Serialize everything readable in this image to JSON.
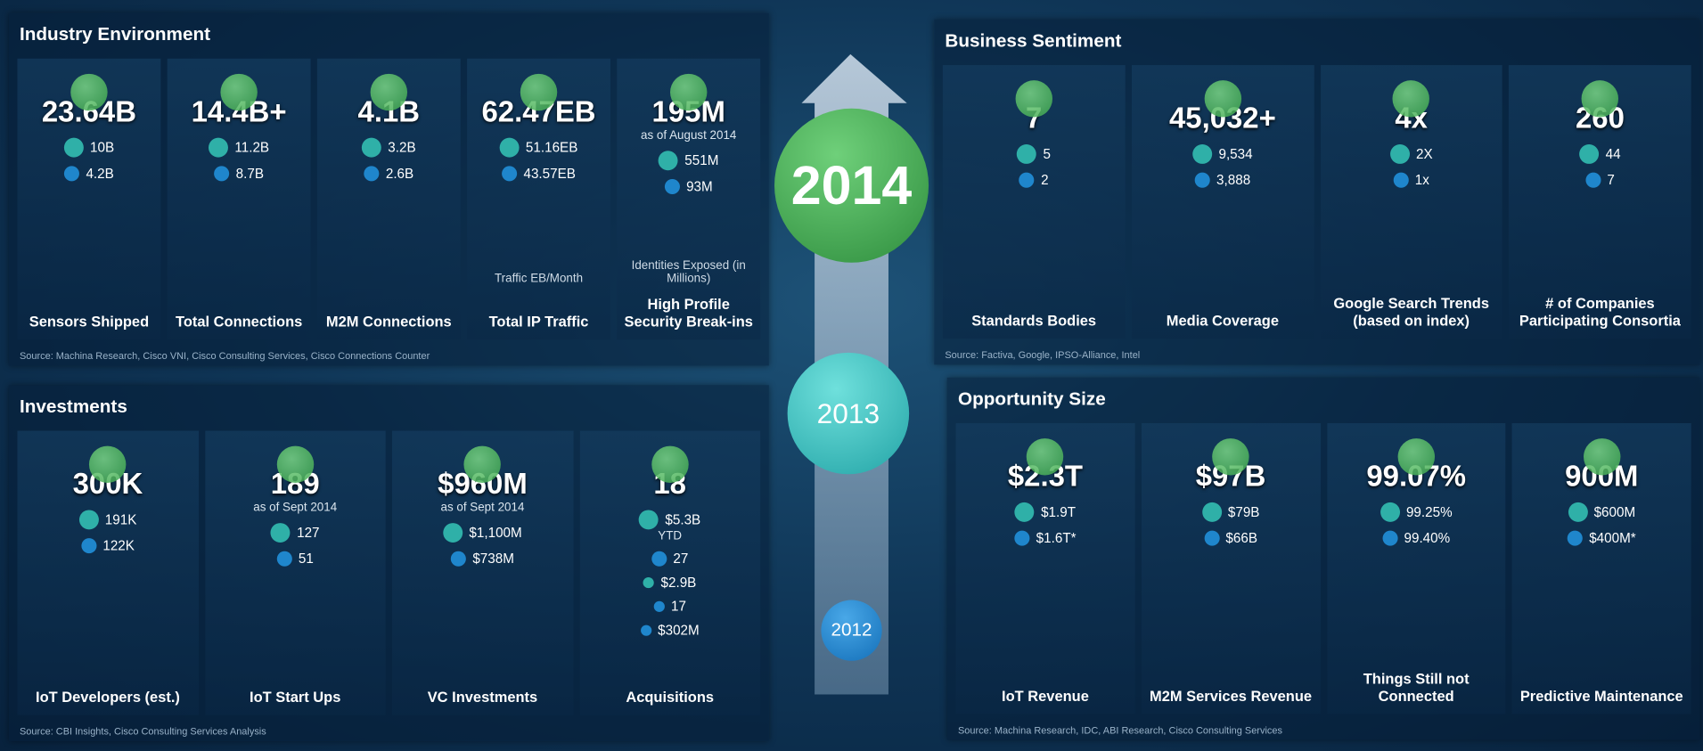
{
  "timeline": [
    "2014",
    "2013",
    "2012"
  ],
  "sections": [
    {
      "title": "Industry Environment",
      "source": "Source: Machina Research, Cisco VNI, Cisco Consulting Services, Cisco Connections Counter",
      "panels": [
        {
          "label": "Sensors Shipped",
          "items": [
            {
              "value": "23.64B"
            },
            {
              "value": "10B"
            },
            {
              "value": "4.2B"
            }
          ]
        },
        {
          "label": "Total Connections",
          "items": [
            {
              "value": "14.4B+"
            },
            {
              "value": "11.2B"
            },
            {
              "value": "8.7B"
            }
          ]
        },
        {
          "label": "M2M Connections",
          "items": [
            {
              "value": "4.1B"
            },
            {
              "value": "3.2B"
            },
            {
              "value": "2.6B"
            }
          ]
        },
        {
          "label": "Total IP Traffic",
          "caption": "Traffic EB/Month",
          "items": [
            {
              "value": "62.47EB"
            },
            {
              "value": "51.16EB"
            },
            {
              "value": "43.57EB"
            }
          ]
        },
        {
          "label": "High Profile Security Break-ins",
          "caption": "Identities Exposed (in Millions)",
          "items": [
            {
              "value": "195M",
              "note": "as of August 2014"
            },
            {
              "value": "551M"
            },
            {
              "value": "93M"
            }
          ]
        }
      ]
    },
    {
      "title": "Business Sentiment",
      "source": "Source: Factiva, Google, IPSO-Alliance, Intel",
      "panels": [
        {
          "label": "Standards Bodies",
          "items": [
            {
              "value": "7"
            },
            {
              "value": "5"
            },
            {
              "value": "2"
            }
          ]
        },
        {
          "label": "Media Coverage",
          "items": [
            {
              "value": "45,032+"
            },
            {
              "value": "9,534"
            },
            {
              "value": "3,888"
            }
          ]
        },
        {
          "label": "Google Search Trends (based on index)",
          "items": [
            {
              "value": "4x"
            },
            {
              "value": "2X"
            },
            {
              "value": "1x"
            }
          ]
        },
        {
          "label": "# of Companies Participating Consortia",
          "items": [
            {
              "value": "260"
            },
            {
              "value": "44"
            },
            {
              "value": "7"
            }
          ]
        }
      ]
    },
    {
      "title": "Investments",
      "source": "Source: CBI Insights, Cisco Consulting Services Analysis",
      "panels": [
        {
          "label": "IoT Developers (est.)",
          "items": [
            {
              "value": "300K"
            },
            {
              "value": "191K"
            },
            {
              "value": "122K"
            }
          ]
        },
        {
          "label": "IoT Start Ups",
          "items": [
            {
              "value": "189",
              "note": "as of Sept 2014"
            },
            {
              "value": "127"
            },
            {
              "value": "51"
            }
          ]
        },
        {
          "label": "VC Investments",
          "items": [
            {
              "value": "$960M",
              "note": "as of Sept 2014"
            },
            {
              "value": "$1,100M"
            },
            {
              "value": "$738M"
            }
          ]
        },
        {
          "label": "Acquisitions",
          "items": [
            {
              "value": "18"
            },
            {
              "value": "$5.3B",
              "note": "YTD"
            },
            {
              "value": "27"
            },
            {
              "value": "$2.9B"
            },
            {
              "value": "17"
            },
            {
              "value": "$302M"
            }
          ]
        }
      ]
    },
    {
      "title": "Opportunity Size",
      "source": "Source: Machina Research, IDC, ABI Research, Cisco Consulting Services",
      "panels": [
        {
          "label": "IoT Revenue",
          "items": [
            {
              "value": "$2.3T"
            },
            {
              "value": "$1.9T"
            },
            {
              "value": "$1.6T*"
            }
          ]
        },
        {
          "label": "M2M Services Revenue",
          "items": [
            {
              "value": "$97B"
            },
            {
              "value": "$79B"
            },
            {
              "value": "$66B"
            }
          ]
        },
        {
          "label": "Things Still not Connected",
          "items": [
            {
              "value": "99.07%"
            },
            {
              "value": "99.25%"
            },
            {
              "value": "99.40%"
            }
          ]
        },
        {
          "label": "Predictive Maintenance",
          "items": [
            {
              "value": "900M"
            },
            {
              "value": "$600M"
            },
            {
              "value": "$400M*"
            }
          ]
        }
      ]
    }
  ]
}
